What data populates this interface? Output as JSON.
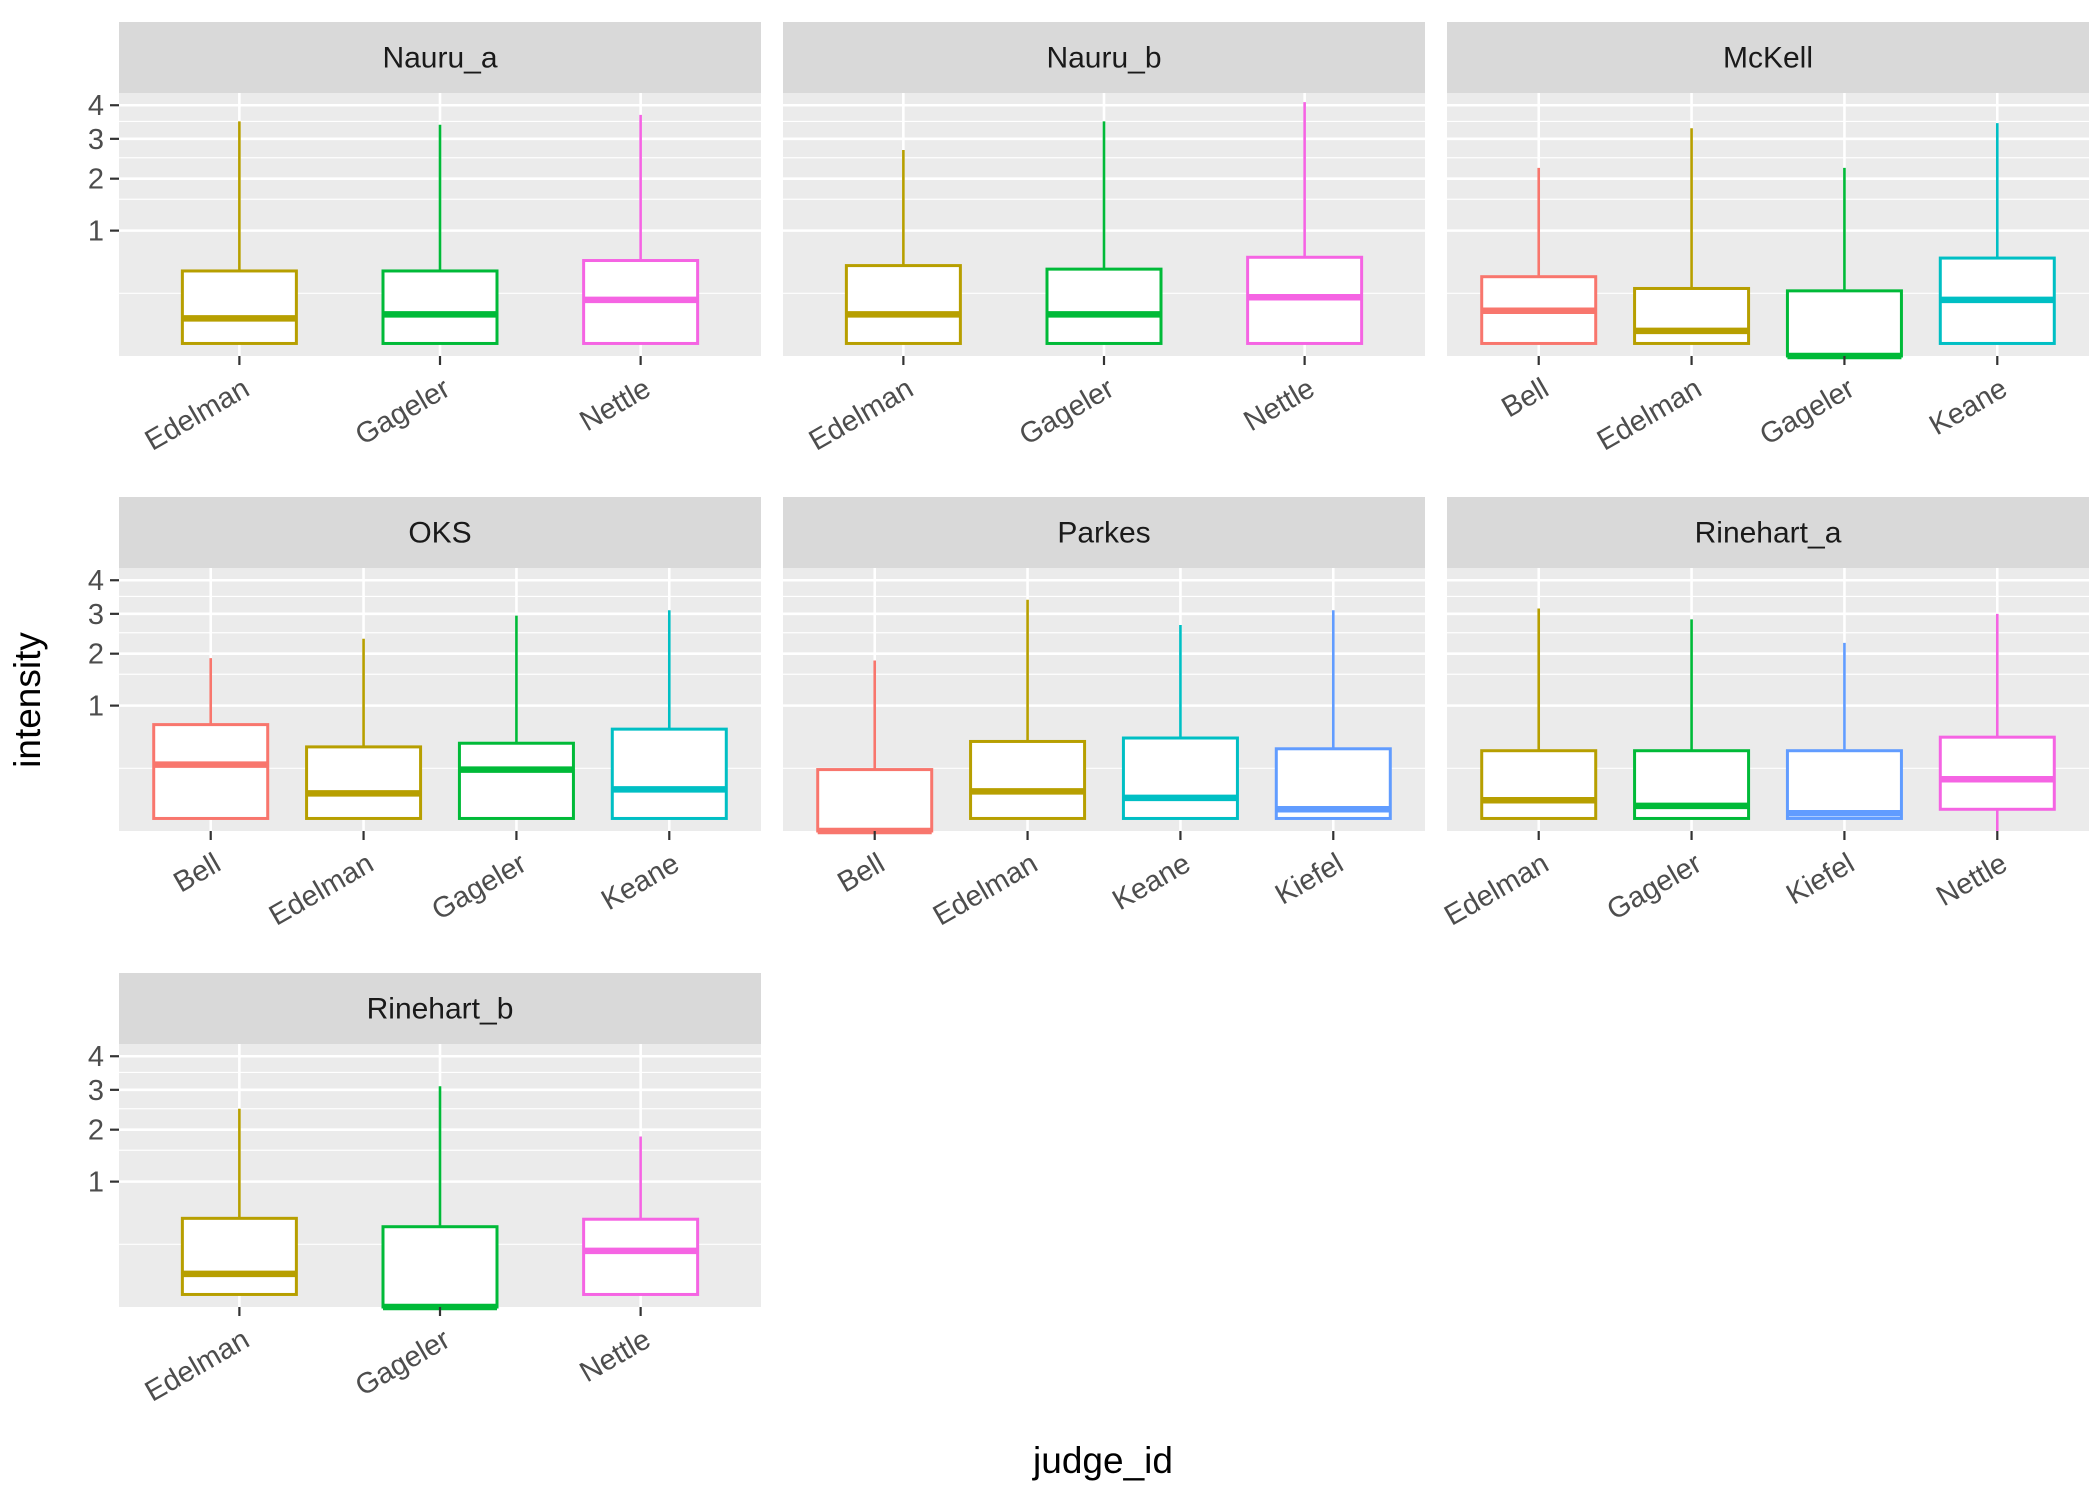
{
  "chart_data": {
    "type": "boxplot",
    "xlabel": "judge_id",
    "ylabel": "intensity",
    "y_scale": "sqrt",
    "y_ticks": [
      1,
      2,
      3,
      4
    ],
    "ylim": [
      0,
      4.4
    ],
    "grid": true,
    "legend": "none",
    "colors": {
      "Bell": "#F8766D",
      "Edelman": "#B79F00",
      "Gageler": "#00BA38",
      "Keane": "#00BFC4",
      "Kiefel": "#619CFF",
      "Nettle": "#F564E3"
    },
    "panels": [
      {
        "title": "Nauru_a",
        "boxes": [
          {
            "judge": "Edelman",
            "min": 0.01,
            "q1": 0.01,
            "median": 0.09,
            "q3": 0.46,
            "max": 3.5
          },
          {
            "judge": "Gageler",
            "min": 0.01,
            "q1": 0.01,
            "median": 0.11,
            "q3": 0.46,
            "max": 3.4
          },
          {
            "judge": "Nettle",
            "min": 0.01,
            "q1": 0.01,
            "median": 0.2,
            "q3": 0.58,
            "max": 3.7
          }
        ]
      },
      {
        "title": "Nauru_b",
        "boxes": [
          {
            "judge": "Edelman",
            "min": 0.01,
            "q1": 0.01,
            "median": 0.11,
            "q3": 0.52,
            "max": 2.7
          },
          {
            "judge": "Gageler",
            "min": 0.01,
            "q1": 0.01,
            "median": 0.11,
            "q3": 0.48,
            "max": 3.5
          },
          {
            "judge": "Nettle",
            "min": 0.01,
            "q1": 0.01,
            "median": 0.22,
            "q3": 0.62,
            "max": 4.1
          }
        ]
      },
      {
        "title": "McKell",
        "boxes": [
          {
            "judge": "Bell",
            "min": 0.01,
            "q1": 0.01,
            "median": 0.13,
            "q3": 0.4,
            "max": 2.25
          },
          {
            "judge": "Edelman",
            "min": 0.01,
            "q1": 0.01,
            "median": 0.04,
            "q3": 0.29,
            "max": 3.3
          },
          {
            "judge": "Gageler",
            "min": 0,
            "q1": 0,
            "median": 0,
            "q3": 0.27,
            "max": 2.25
          },
          {
            "judge": "Keane",
            "min": 0.01,
            "q1": 0.01,
            "median": 0.2,
            "q3": 0.61,
            "max": 3.45
          }
        ]
      },
      {
        "title": "OKS",
        "boxes": [
          {
            "judge": "Bell",
            "min": 0.01,
            "q1": 0.01,
            "median": 0.28,
            "q3": 0.72,
            "max": 1.9
          },
          {
            "judge": "Edelman",
            "min": 0.01,
            "q1": 0.01,
            "median": 0.09,
            "q3": 0.45,
            "max": 2.35
          },
          {
            "judge": "Gageler",
            "min": 0.01,
            "q1": 0.01,
            "median": 0.24,
            "q3": 0.49,
            "max": 2.95
          },
          {
            "judge": "Keane",
            "min": 0.01,
            "q1": 0.01,
            "median": 0.11,
            "q3": 0.66,
            "max": 3.1
          }
        ]
      },
      {
        "title": "Parkes",
        "boxes": [
          {
            "judge": "Bell",
            "min": 0,
            "q1": 0,
            "median": 0,
            "q3": 0.24,
            "max": 1.85
          },
          {
            "judge": "Edelman",
            "min": 0.01,
            "q1": 0.01,
            "median": 0.1,
            "q3": 0.51,
            "max": 3.4
          },
          {
            "judge": "Keane",
            "min": 0.01,
            "q1": 0.01,
            "median": 0.07,
            "q3": 0.55,
            "max": 2.7
          },
          {
            "judge": "Kiefel",
            "min": 0.01,
            "q1": 0.01,
            "median": 0.03,
            "q3": 0.43,
            "max": 3.1
          }
        ]
      },
      {
        "title": "Rinehart_a",
        "boxes": [
          {
            "judge": "Edelman",
            "min": 0.01,
            "q1": 0.01,
            "median": 0.06,
            "q3": 0.41,
            "max": 3.15
          },
          {
            "judge": "Gageler",
            "min": 0.01,
            "q1": 0.01,
            "median": 0.04,
            "q3": 0.41,
            "max": 2.85
          },
          {
            "judge": "Kiefel",
            "min": 0.01,
            "q1": 0.01,
            "median": 0.02,
            "q3": 0.41,
            "max": 2.25
          },
          {
            "judge": "Nettle",
            "min": 0,
            "q1": 0.03,
            "median": 0.17,
            "q3": 0.56,
            "max": 3.0
          }
        ]
      },
      {
        "title": "Rinehart_b",
        "boxes": [
          {
            "judge": "Edelman",
            "min": 0.01,
            "q1": 0.01,
            "median": 0.07,
            "q3": 0.5,
            "max": 2.5
          },
          {
            "judge": "Gageler",
            "min": 0,
            "q1": 0,
            "median": 0,
            "q3": 0.41,
            "max": 3.1
          },
          {
            "judge": "Nettle",
            "min": 0.01,
            "q1": 0.01,
            "median": 0.2,
            "q3": 0.49,
            "max": 1.85
          }
        ]
      }
    ]
  }
}
